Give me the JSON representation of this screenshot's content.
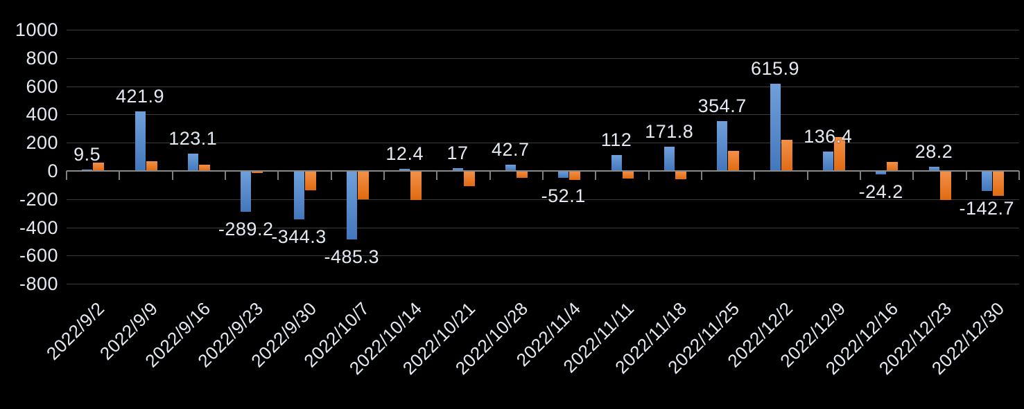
{
  "chart_data": {
    "type": "bar",
    "title": "",
    "legend": "none",
    "grid": true,
    "background_color": "#000000",
    "text_color": "#E4E9F2",
    "gridline_color": "#3C3C3C",
    "axis_color": "#8A8A8A",
    "tick_color": "#7F7F7F",
    "categories": [
      "2022/9/2",
      "2022/9/9",
      "2022/9/16",
      "2022/9/23",
      "2022/9/30",
      "2022/10/7",
      "2022/10/14",
      "2022/10/21",
      "2022/10/28",
      "2022/11/4",
      "2022/11/11",
      "2022/11/18",
      "2022/11/25",
      "2022/12/2",
      "2022/12/9",
      "2022/12/16",
      "2022/12/23",
      "2022/12/30"
    ],
    "series": [
      {
        "name": "blue-series",
        "color_top": "#6FA0DB",
        "color_bottom": "#4377BC",
        "values": [
          9.5,
          421.9,
          123.1,
          -289.2,
          -344.3,
          -485.3,
          12.4,
          17,
          42.7,
          -52.1,
          112,
          171.8,
          354.7,
          615.9,
          136.4,
          -24.2,
          28.2,
          -142.7
        ]
      },
      {
        "name": "orange-series",
        "color_top": "#F2914A",
        "color_bottom": "#E16A10",
        "values": [
          57,
          70,
          44,
          -13,
          -140,
          -200,
          -208,
          -108,
          -48,
          -66,
          -57,
          -58,
          141,
          220,
          240,
          65,
          -205,
          -178
        ]
      }
    ],
    "data_labels": {
      "labeled_series": "blue-series",
      "texts": [
        "9.5",
        "421.9",
        "123.1",
        "-289.2",
        "-344.3",
        "-485.3",
        "12.4",
        "17",
        "42.7",
        "-52.1",
        "112",
        "171.8",
        "354.7",
        "615.9",
        "136.4",
        "-24.2",
        "28.2",
        "-142.7"
      ]
    },
    "y_axis": {
      "min": -800,
      "max": 1000,
      "step": 200,
      "tick_labels": [
        "1000",
        "800",
        "600",
        "400",
        "200",
        "0",
        "-200",
        "-400",
        "-600",
        "-800"
      ]
    }
  }
}
